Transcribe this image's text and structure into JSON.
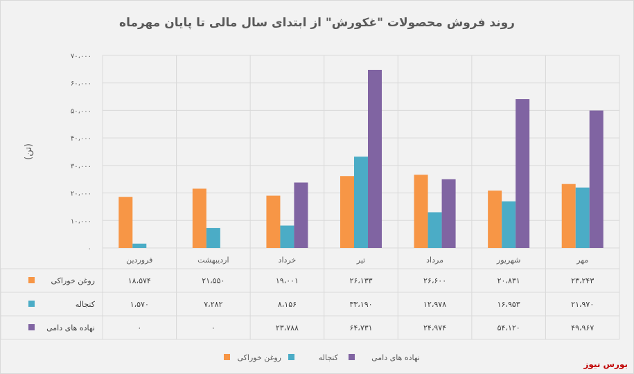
{
  "chart_data": {
    "type": "bar",
    "title": "روند فروش محصولات \"غکورش\" از ابتدای سال مالی تا پایان مهرماه",
    "ylabel": "(تن)",
    "xlabel": "",
    "ylim": [
      0,
      70000
    ],
    "yticks": [
      0,
      10000,
      20000,
      30000,
      40000,
      50000,
      60000,
      70000
    ],
    "ytick_labels": [
      "۰",
      "۱۰،۰۰۰",
      "۲۰،۰۰۰",
      "۳۰،۰۰۰",
      "۴۰،۰۰۰",
      "۵۰،۰۰۰",
      "۶۰،۰۰۰",
      "۷۰،۰۰۰"
    ],
    "grid": true,
    "legend_position": "bottom",
    "categories": [
      "فروردین",
      "اردیبهشت",
      "خرداد",
      "تیر",
      "مرداد",
      "شهریور",
      "مهر"
    ],
    "series": [
      {
        "name": "روغن خوراکی",
        "color": "#f79646",
        "values": [
          18574,
          21550,
          19001,
          26133,
          26600,
          20831,
          23243
        ],
        "labels": [
          "۱۸،۵۷۴",
          "۲۱،۵۵۰",
          "۱۹،۰۰۱",
          "۲۶،۱۳۳",
          "۲۶،۶۰۰",
          "۲۰،۸۳۱",
          "۲۳،۲۴۳"
        ]
      },
      {
        "name": "کنجاله",
        "color": "#4bacc6",
        "values": [
          1570,
          7282,
          8156,
          33190,
          12978,
          16953,
          21970
        ],
        "labels": [
          "۱،۵۷۰",
          "۷،۲۸۲",
          "۸،۱۵۶",
          "۳۳،۱۹۰",
          "۱۲،۹۷۸",
          "۱۶،۹۵۳",
          "۲۱،۹۷۰"
        ]
      },
      {
        "name": "نهاده های دامی",
        "color": "#8064a2",
        "values": [
          0,
          0,
          23788,
          64731,
          24974,
          54120,
          49967
        ],
        "labels": [
          "۰",
          "۰",
          "۲۳،۷۸۸",
          "۶۴،۷۳۱",
          "۲۴،۹۷۴",
          "۵۴،۱۲۰",
          "۴۹،۹۶۷"
        ]
      }
    ]
  },
  "brand": "بورس نیوز"
}
